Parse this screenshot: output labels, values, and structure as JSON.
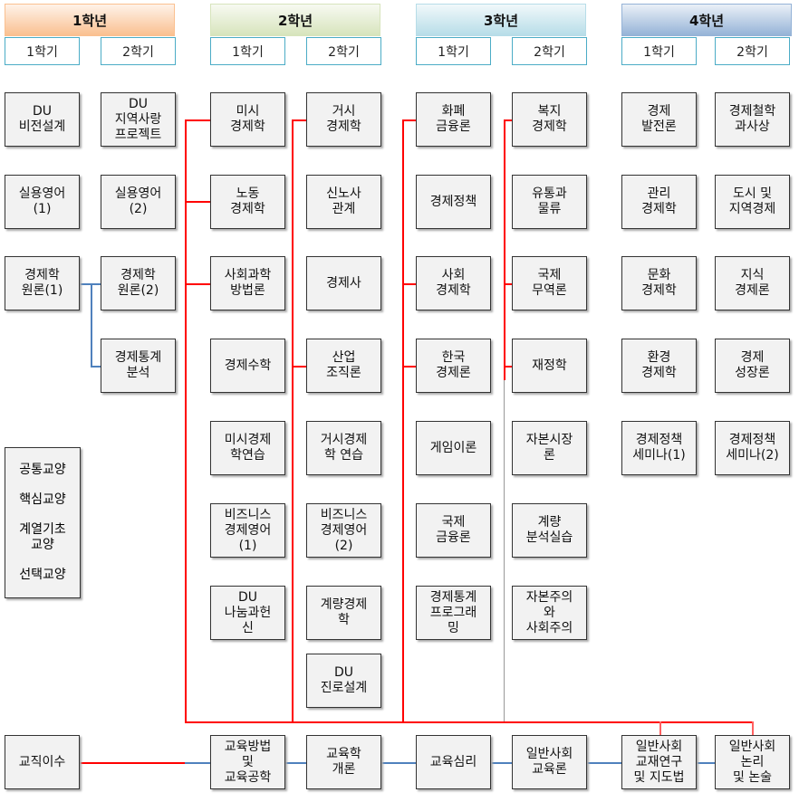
{
  "years": [
    {
      "label": "1학년",
      "color": "#fac090"
    },
    {
      "label": "2학년",
      "color": "#d7e4bc"
    },
    {
      "label": "3학년",
      "color": "#b7dde8"
    },
    {
      "label": "4학년",
      "color": "#95b3d7"
    }
  ],
  "semesters": [
    "1학기",
    "2학기"
  ],
  "courses": [
    [
      "DU\n비전설계",
      "실용영어\n(1)",
      "경제학\n원론(1)"
    ],
    [
      "DU\n지역사랑\n프로젝트",
      "실용영어\n(2)",
      "경제학\n원론(2)",
      "경제통계\n분석"
    ],
    [
      "미시\n경제학",
      "노동\n경제학",
      "사회과학\n방법론",
      "경제수학",
      "미시경제\n학연습",
      "비즈니스\n경제영어\n(1)",
      "DU\n나눔과헌\n신"
    ],
    [
      "거시\n경제학",
      "신노사\n관계",
      "경제사",
      "산업\n조직론",
      "거시경제\n학 연습",
      "비즈니스\n경제영어\n(2)",
      "계량경제\n학",
      "DU\n진로설계"
    ],
    [
      "화폐\n금융론",
      "경제정책",
      "사회\n경제학",
      "한국\n경제론",
      "게임이론",
      "국제\n금융론",
      "경제통계\n프로그래\n밍"
    ],
    [
      "복지\n경제학",
      "유통과\n물류",
      "국제\n무역론",
      "재정학",
      "자본시장\n론",
      "계량\n분석실습",
      "자본주의\n와\n사회주의"
    ],
    [
      "경제\n발전론",
      "관리\n경제학",
      "문화\n경제학",
      "환경\n경제학",
      "경제정책\n세미나(1)"
    ],
    [
      "경제철학\n과사상",
      "도시 및\n지역경제",
      "지식\n경제론",
      "경제\n성장론",
      "경제정책\n세미나(2)"
    ]
  ],
  "legend": [
    "공통교양",
    "핵심교양",
    "계열기초\n교양",
    "선택교양"
  ],
  "teaching": [
    "교직이수",
    "교육방법\n및\n교육공학",
    "교육학\n개론",
    "교육심리",
    "일반사회\n교육론",
    "일반사회\n교재연구\n및 지도법",
    "일반사회\n논리\n및 논술"
  ],
  "colors": {
    "red_line": "#ff0000",
    "blue_line": "#4f81bd",
    "box_fill": "#f2f2f2"
  }
}
